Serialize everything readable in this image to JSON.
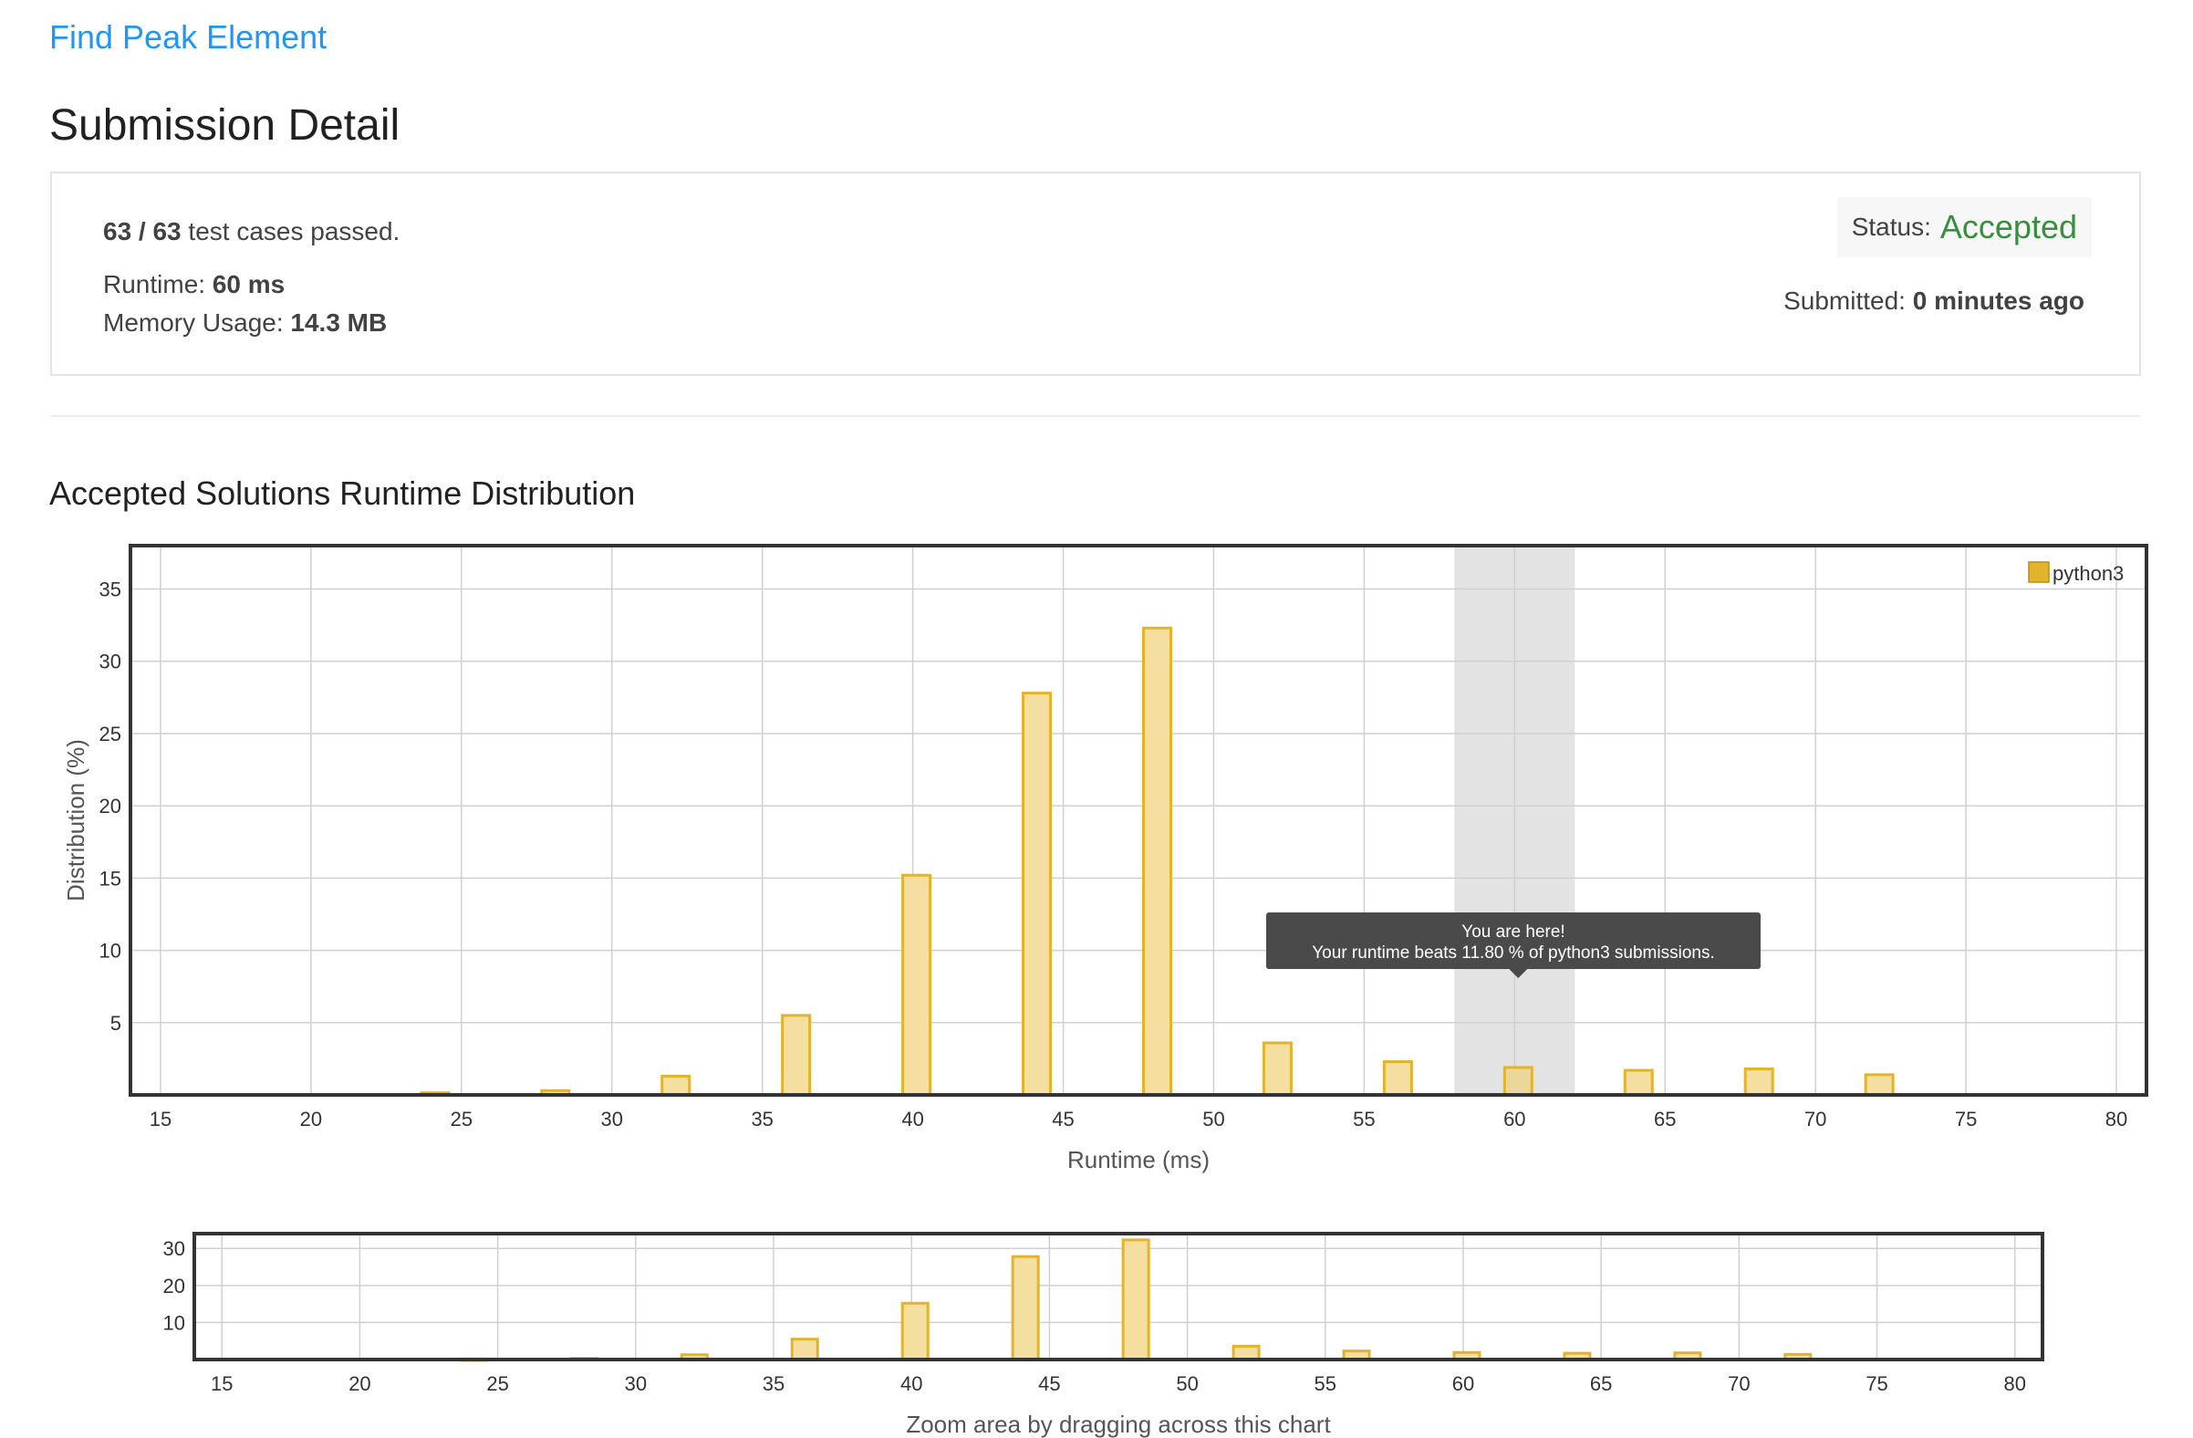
{
  "problem": {
    "title": "Find Peak Element"
  },
  "page": {
    "title": "Submission Detail"
  },
  "detail": {
    "cases_passed": "63 / 63",
    "cases_suffix": "test cases passed.",
    "runtime_label": "Runtime:",
    "runtime_value": "60 ms",
    "memory_label": "Memory Usage:",
    "memory_value": "14.3 MB",
    "status_label": "Status:",
    "status_value": "Accepted",
    "submitted_label": "Submitted:",
    "submitted_value": "0 minutes ago"
  },
  "colors": {
    "link": "#2196f3",
    "accepted": "#388e3c",
    "bar_fill": "#f5dfa0",
    "bar_stroke": "#e3b32c",
    "highlight": "#e3e3e3",
    "tooltip_bg": "#4a4a4a"
  },
  "section": {
    "title": "Accepted Solutions Runtime Distribution"
  },
  "tooltip": {
    "line1": "You are here!",
    "line2": "Your runtime beats 11.80 % of python3 submissions."
  },
  "zoom_hint": "Zoom area by dragging across this chart",
  "chart_data": [
    {
      "type": "bar",
      "series": [
        {
          "name": "python3",
          "x": [
            24,
            28,
            32,
            36,
            40,
            44,
            48,
            52,
            56,
            60,
            64,
            68,
            72
          ],
          "values": [
            0.15,
            0.3,
            1.3,
            5.5,
            15.2,
            27.8,
            32.3,
            3.6,
            2.3,
            1.9,
            1.7,
            1.8,
            1.4
          ]
        }
      ],
      "xlabel": "Runtime (ms)",
      "ylabel": "Distribution (%)",
      "xlim": [
        14,
        81
      ],
      "ylim": [
        0,
        38
      ],
      "xticks": [
        15,
        20,
        25,
        30,
        35,
        40,
        45,
        50,
        55,
        60,
        65,
        70,
        75,
        80
      ],
      "yticks": [
        5,
        10,
        15,
        20,
        25,
        30,
        35
      ],
      "highlight_x": 60,
      "grid": true,
      "legend": "top-right"
    },
    {
      "type": "bar",
      "series": [
        {
          "name": "python3",
          "x": [
            24,
            28,
            32,
            36,
            40,
            44,
            48,
            52,
            56,
            60,
            64,
            68,
            72
          ],
          "values": [
            0.15,
            0.3,
            1.3,
            5.5,
            15.2,
            27.8,
            32.3,
            3.6,
            2.3,
            1.9,
            1.7,
            1.8,
            1.4
          ]
        }
      ],
      "xlim": [
        14,
        81
      ],
      "ylim": [
        0,
        34
      ],
      "xticks": [
        15,
        20,
        25,
        30,
        35,
        40,
        45,
        50,
        55,
        60,
        65,
        70,
        75,
        80
      ],
      "yticks": [
        10,
        20,
        30
      ],
      "grid": true
    }
  ]
}
